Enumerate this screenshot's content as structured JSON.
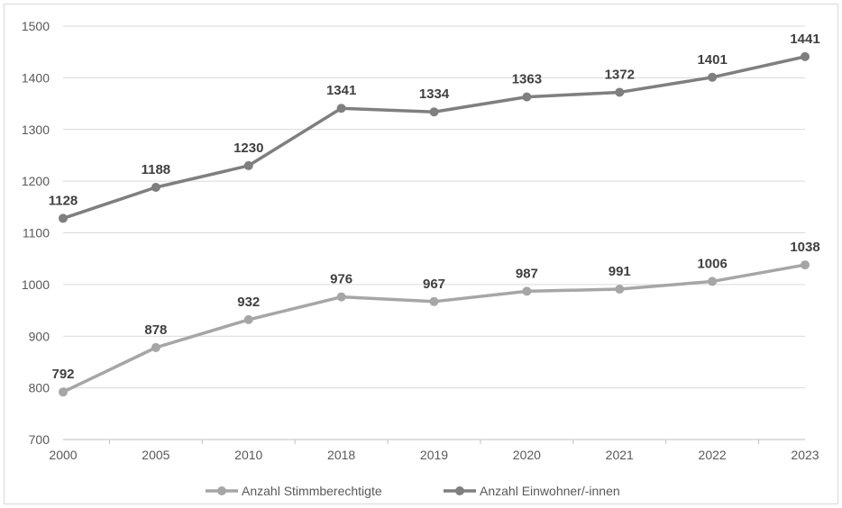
{
  "chart_data": {
    "type": "line",
    "categories": [
      "2000",
      "2005",
      "2010",
      "2018",
      "2019",
      "2020",
      "2021",
      "2022",
      "2023"
    ],
    "series": [
      {
        "name": "Anzahl Stimmberechtigte",
        "values": [
          792,
          878,
          932,
          976,
          967,
          987,
          991,
          1006,
          1038
        ],
        "color": "#a6a6a6"
      },
      {
        "name": "Anzahl Einwohner/-innen",
        "values": [
          1128,
          1188,
          1230,
          1341,
          1334,
          1363,
          1372,
          1401,
          1441
        ],
        "color": "#7f7f7f"
      }
    ],
    "ylim": [
      700,
      1500
    ],
    "yticks": [
      "700",
      "800",
      "900",
      "1000",
      "1100",
      "1200",
      "1300",
      "1400",
      "1500"
    ],
    "grid": true,
    "legend": "bottom"
  }
}
